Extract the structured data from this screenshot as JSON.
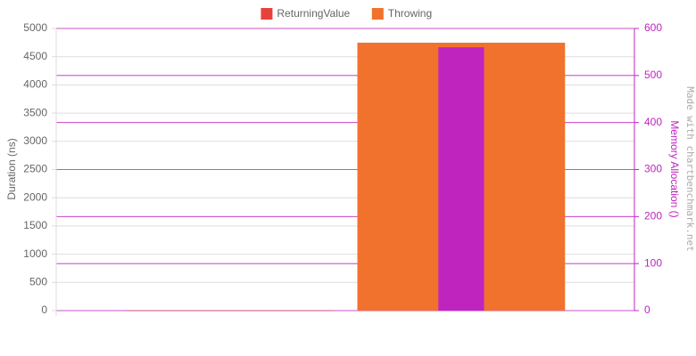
{
  "chart_data": {
    "type": "bar",
    "categories": [
      null
    ],
    "series": [
      {
        "name": "ReturningValue",
        "color": "#e8413c",
        "values": [
          3
        ],
        "allocation": [
          0
        ]
      },
      {
        "name": "Throwing",
        "color": "#f1722d",
        "values": [
          4748
        ],
        "allocation": [
          560
        ]
      }
    ],
    "allocation_color": "#bf24bf",
    "ylabel": "Duration (ns)",
    "y2label": "Memory Allocation ()",
    "watermark": "Made with chartbenchmark.net",
    "ylim": [
      0,
      5000
    ],
    "yticks": [
      0,
      500,
      1000,
      1500,
      2000,
      2500,
      3000,
      3500,
      4000,
      4500,
      5000
    ],
    "y2lim": [
      0,
      600
    ],
    "y2ticks": [
      0,
      100,
      200,
      300,
      400,
      500,
      600
    ],
    "grid": true,
    "legend": "top"
  }
}
